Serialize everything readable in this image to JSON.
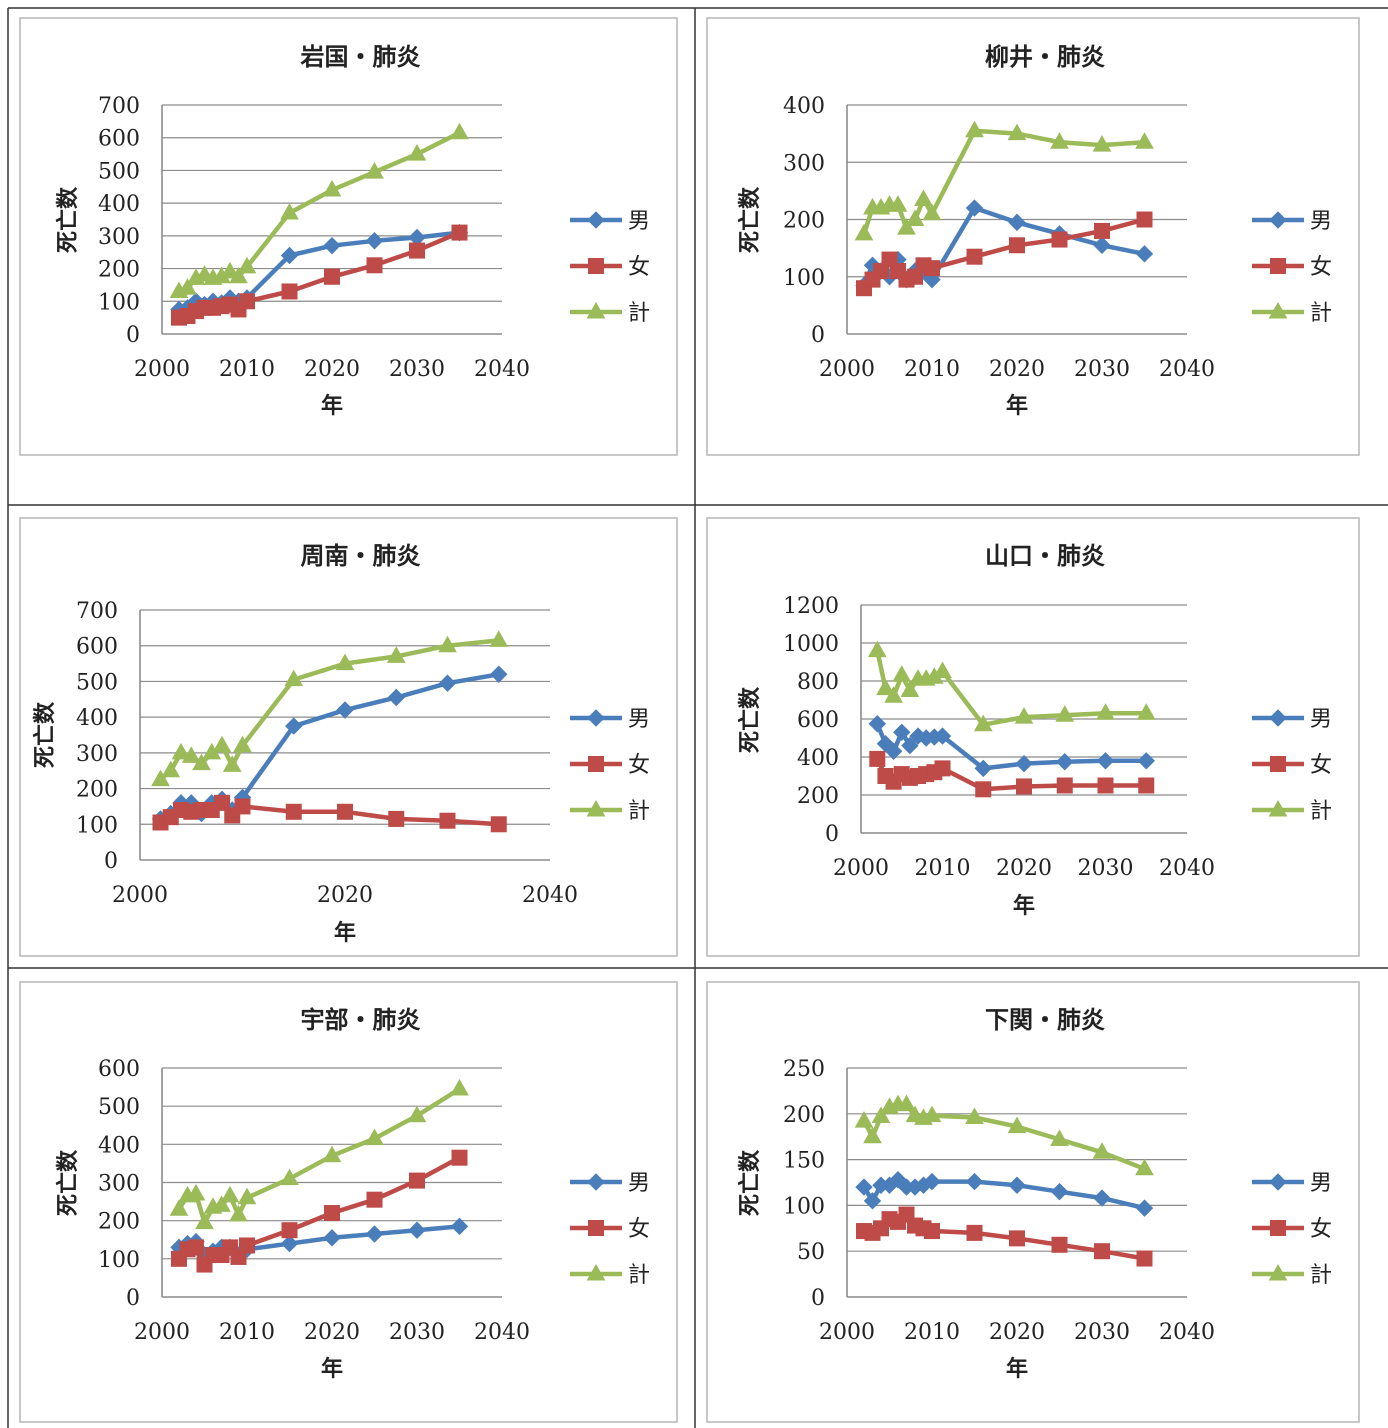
{
  "colors": {
    "male": "#4a7ebb",
    "female": "#be4b48",
    "total": "#9bbb59",
    "grid": "#8c8c8c",
    "frame": "#b5b5b5",
    "outer": "#333333"
  },
  "chart_data": [
    {
      "type": "line",
      "title": "岩国・肺炎",
      "xlabel": "年",
      "ylabel": "死亡数",
      "xlim": [
        2000,
        2040
      ],
      "ylim": [
        0,
        700
      ],
      "xticks": [
        "2000",
        "2010",
        "2020",
        "2030",
        "2040"
      ],
      "yticks": [
        "0",
        "100",
        "200",
        "300",
        "400",
        "500",
        "600",
        "700"
      ],
      "legend": "right",
      "grid": true,
      "series": [
        {
          "name": "男",
          "x": [
            2002,
            2003,
            2004,
            2005,
            2006,
            2007,
            2008,
            2009,
            2010,
            2015,
            2020,
            2025,
            2030,
            2035
          ],
          "values": [
            75,
            80,
            100,
            90,
            100,
            95,
            110,
            100,
            110,
            240,
            270,
            285,
            295,
            310
          ]
        },
        {
          "name": "女",
          "x": [
            2002,
            2003,
            2004,
            2005,
            2006,
            2007,
            2008,
            2009,
            2010,
            2015,
            2020,
            2025,
            2030,
            2035
          ],
          "values": [
            50,
            55,
            70,
            80,
            80,
            85,
            90,
            75,
            100,
            130,
            175,
            210,
            255,
            310
          ]
        },
        {
          "name": "計",
          "x": [
            2002,
            2003,
            2004,
            2005,
            2006,
            2007,
            2008,
            2009,
            2010,
            2015,
            2020,
            2025,
            2030,
            2035
          ],
          "values": [
            130,
            140,
            170,
            180,
            170,
            175,
            190,
            175,
            205,
            370,
            440,
            495,
            550,
            615
          ]
        }
      ]
    },
    {
      "type": "line",
      "title": "柳井・肺炎",
      "xlabel": "年",
      "ylabel": "死亡数",
      "xlim": [
        2000,
        2040
      ],
      "ylim": [
        0,
        400
      ],
      "xticks": [
        "2000",
        "2010",
        "2020",
        "2030",
        "2040"
      ],
      "yticks": [
        "0",
        "100",
        "200",
        "300",
        "400"
      ],
      "legend": "right",
      "grid": true,
      "series": [
        {
          "name": "男",
          "x": [
            2002,
            2003,
            2004,
            2005,
            2006,
            2007,
            2008,
            2009,
            2010,
            2015,
            2020,
            2025,
            2030,
            2035
          ],
          "values": [
            85,
            120,
            110,
            100,
            130,
            95,
            110,
            110,
            95,
            220,
            195,
            175,
            155,
            140
          ]
        },
        {
          "name": "女",
          "x": [
            2002,
            2003,
            2004,
            2005,
            2006,
            2007,
            2008,
            2009,
            2010,
            2015,
            2020,
            2025,
            2030,
            2035
          ],
          "values": [
            80,
            95,
            110,
            130,
            110,
            95,
            100,
            120,
            115,
            135,
            155,
            165,
            180,
            200
          ]
        },
        {
          "name": "計",
          "x": [
            2002,
            2003,
            2004,
            2005,
            2006,
            2007,
            2008,
            2009,
            2010,
            2015,
            2020,
            2025,
            2030,
            2035
          ],
          "values": [
            175,
            220,
            220,
            225,
            225,
            185,
            200,
            235,
            210,
            355,
            350,
            335,
            330,
            335
          ]
        }
      ]
    },
    {
      "type": "line",
      "title": "周南・肺炎",
      "xlabel": "年",
      "ylabel": "死亡数",
      "xlim": [
        2000,
        2040
      ],
      "ylim": [
        0,
        700
      ],
      "xticks": [
        "2000",
        "2020",
        "2040"
      ],
      "yticks": [
        "0",
        "100",
        "200",
        "300",
        "400",
        "500",
        "600",
        "700"
      ],
      "legend": "right",
      "grid": true,
      "series": [
        {
          "name": "男",
          "x": [
            2002,
            2003,
            2004,
            2005,
            2006,
            2007,
            2008,
            2009,
            2010,
            2015,
            2020,
            2025,
            2030,
            2035
          ],
          "values": [
            115,
            130,
            160,
            160,
            130,
            160,
            170,
            140,
            175,
            375,
            420,
            455,
            495,
            520
          ]
        },
        {
          "name": "女",
          "x": [
            2002,
            2003,
            2004,
            2005,
            2006,
            2007,
            2008,
            2009,
            2010,
            2015,
            2020,
            2025,
            2030,
            2035
          ],
          "values": [
            105,
            120,
            140,
            135,
            140,
            140,
            160,
            125,
            150,
            135,
            135,
            115,
            110,
            100
          ]
        },
        {
          "name": "計",
          "x": [
            2002,
            2003,
            2004,
            2005,
            2006,
            2007,
            2008,
            2009,
            2010,
            2015,
            2020,
            2025,
            2030,
            2035
          ],
          "values": [
            225,
            250,
            300,
            290,
            270,
            300,
            320,
            265,
            320,
            505,
            550,
            570,
            600,
            615
          ]
        }
      ]
    },
    {
      "type": "line",
      "title": "山口・肺炎",
      "xlabel": "年",
      "ylabel": "死亡数",
      "xlim": [
        2000,
        2040
      ],
      "ylim": [
        0,
        1200
      ],
      "xticks": [
        "2000",
        "2010",
        "2020",
        "2030",
        "2040"
      ],
      "yticks": [
        "0",
        "200",
        "400",
        "600",
        "800",
        "1000",
        "1200"
      ],
      "legend": "right",
      "grid": true,
      "series": [
        {
          "name": "男",
          "x": [
            2002,
            2003,
            2004,
            2005,
            2006,
            2007,
            2008,
            2009,
            2010,
            2015,
            2020,
            2025,
            2030,
            2035
          ],
          "values": [
            575,
            470,
            430,
            530,
            460,
            510,
            500,
            505,
            510,
            340,
            365,
            375,
            380,
            380
          ]
        },
        {
          "name": "女",
          "x": [
            2002,
            2003,
            2004,
            2005,
            2006,
            2007,
            2008,
            2009,
            2010,
            2015,
            2020,
            2025,
            2030,
            2035
          ],
          "values": [
            390,
            300,
            270,
            310,
            290,
            300,
            310,
            320,
            340,
            230,
            245,
            250,
            250,
            250
          ]
        },
        {
          "name": "計",
          "x": [
            2002,
            2003,
            2004,
            2005,
            2006,
            2007,
            2008,
            2009,
            2010,
            2015,
            2020,
            2025,
            2030,
            2035
          ],
          "values": [
            960,
            760,
            720,
            830,
            750,
            810,
            810,
            820,
            850,
            570,
            610,
            620,
            630,
            630
          ]
        }
      ]
    },
    {
      "type": "line",
      "title": "宇部・肺炎",
      "xlabel": "年",
      "ylabel": "死亡数",
      "xlim": [
        2000,
        2040
      ],
      "ylim": [
        0,
        600
      ],
      "xticks": [
        "2000",
        "2010",
        "2020",
        "2030",
        "2040"
      ],
      "yticks": [
        "0",
        "100",
        "200",
        "300",
        "400",
        "500",
        "600"
      ],
      "legend": "right",
      "grid": true,
      "series": [
        {
          "name": "男",
          "x": [
            2002,
            2003,
            2004,
            2005,
            2006,
            2007,
            2008,
            2009,
            2010,
            2015,
            2020,
            2025,
            2030,
            2035
          ],
          "values": [
            130,
            140,
            145,
            110,
            120,
            130,
            130,
            110,
            125,
            140,
            155,
            165,
            175,
            185
          ]
        },
        {
          "name": "女",
          "x": [
            2002,
            2003,
            2004,
            2005,
            2006,
            2007,
            2008,
            2009,
            2010,
            2015,
            2020,
            2025,
            2030,
            2035
          ],
          "values": [
            100,
            125,
            130,
            85,
            110,
            110,
            130,
            105,
            135,
            175,
            220,
            255,
            305,
            365
          ]
        },
        {
          "name": "計",
          "x": [
            2002,
            2003,
            2004,
            2005,
            2006,
            2007,
            2008,
            2009,
            2010,
            2015,
            2020,
            2025,
            2030,
            2035
          ],
          "values": [
            230,
            265,
            270,
            195,
            235,
            240,
            265,
            215,
            260,
            310,
            370,
            415,
            475,
            545
          ]
        }
      ]
    },
    {
      "type": "line",
      "title": "下関・肺炎",
      "xlabel": "年",
      "ylabel": "死亡数",
      "xlim": [
        2000,
        2040
      ],
      "ylim": [
        0,
        250
      ],
      "xticks": [
        "2000",
        "2010",
        "2020",
        "2030",
        "2040"
      ],
      "yticks": [
        "0",
        "50",
        "100",
        "150",
        "200",
        "250"
      ],
      "legend": "right",
      "grid": true,
      "series": [
        {
          "name": "男",
          "x": [
            2002,
            2003,
            2004,
            2005,
            2006,
            2007,
            2008,
            2009,
            2010,
            2015,
            2020,
            2025,
            2030,
            2035
          ],
          "values": [
            120,
            105,
            122,
            122,
            128,
            120,
            120,
            122,
            126,
            126,
            122,
            115,
            108,
            97
          ]
        },
        {
          "name": "女",
          "x": [
            2002,
            2003,
            2004,
            2005,
            2006,
            2007,
            2008,
            2009,
            2010,
            2015,
            2020,
            2025,
            2030,
            2035
          ],
          "values": [
            72,
            70,
            75,
            85,
            82,
            90,
            78,
            75,
            72,
            70,
            64,
            57,
            50,
            42
          ]
        },
        {
          "name": "計",
          "x": [
            2002,
            2003,
            2004,
            2005,
            2006,
            2007,
            2008,
            2009,
            2010,
            2015,
            2020,
            2025,
            2030,
            2035
          ],
          "values": [
            192,
            175,
            197,
            207,
            210,
            210,
            198,
            195,
            198,
            196,
            186,
            172,
            158,
            140
          ]
        }
      ]
    }
  ]
}
